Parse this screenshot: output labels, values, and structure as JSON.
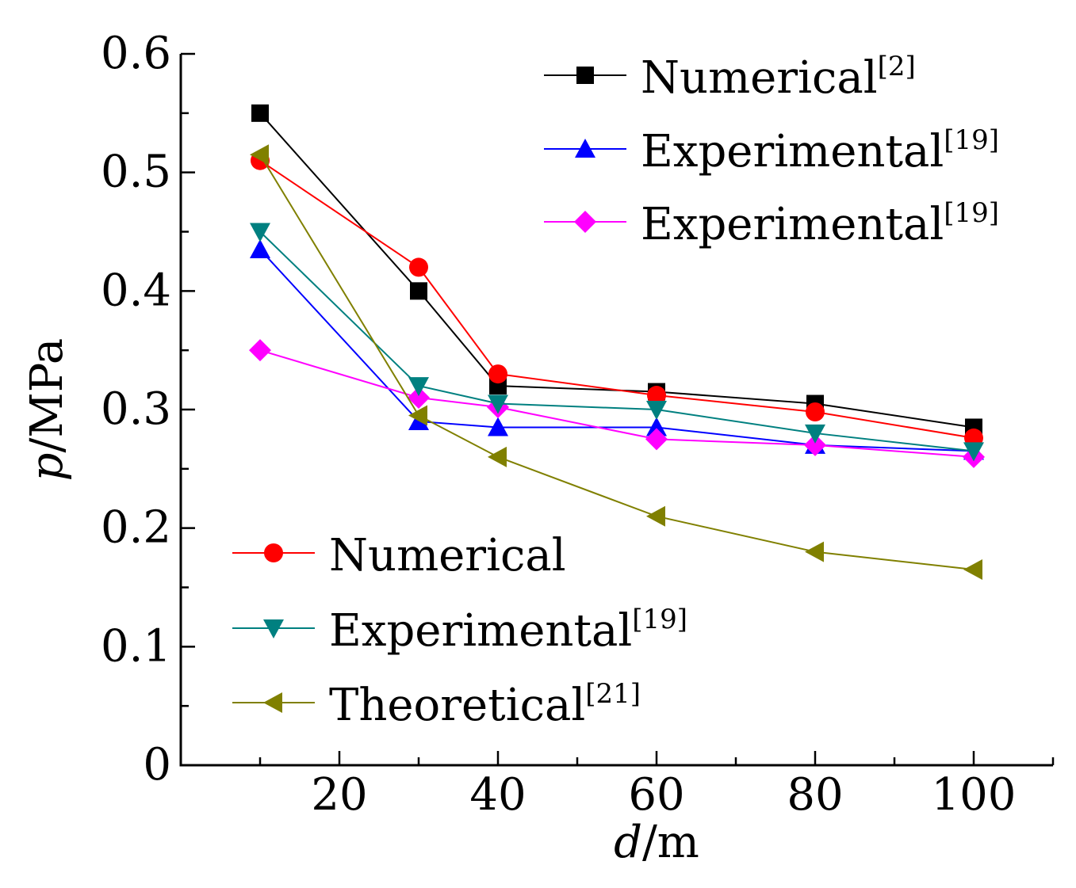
{
  "chart_data": {
    "type": "line",
    "title": "",
    "xlabel": "d",
    "xlabel_unit": "/m",
    "ylabel": "p",
    "ylabel_unit": "/MPa",
    "xlim": [
      0,
      110
    ],
    "ylim": [
      0,
      0.6
    ],
    "xticks": [
      20,
      40,
      60,
      80,
      100
    ],
    "yticks": [
      0,
      0.1,
      0.2,
      0.3,
      0.4,
      0.5,
      0.6
    ],
    "xtick_labels": [
      "20",
      "40",
      "60",
      "80",
      "100"
    ],
    "ytick_labels": [
      "0",
      "0.1",
      "0.2",
      "0.3",
      "0.4",
      "0.5",
      "0.6"
    ],
    "grid": false,
    "legend_placement": [
      "top-right",
      "bottom-left"
    ],
    "x": [
      10,
      30,
      40,
      60,
      80,
      100
    ],
    "series": [
      {
        "name": "Numerical",
        "sup": "[2]",
        "marker": "square",
        "color": "#000000",
        "values": [
          0.55,
          0.4,
          0.32,
          0.315,
          0.305,
          0.285
        ]
      },
      {
        "name": "Experimental",
        "sup": "[19]",
        "marker": "triangle-up",
        "color": "#0000FF",
        "values": [
          0.435,
          0.29,
          0.285,
          0.285,
          0.27,
          0.265
        ]
      },
      {
        "name": "Experimental",
        "sup": "[19]",
        "marker": "diamond",
        "color": "#FF00FF",
        "values": [
          0.35,
          0.31,
          0.302,
          0.275,
          0.27,
          0.26
        ]
      },
      {
        "name": "Numerical",
        "sup": "",
        "marker": "circle",
        "color": "#FF0000",
        "values": [
          0.51,
          0.42,
          0.33,
          0.312,
          0.298,
          0.276
        ]
      },
      {
        "name": "Experimental",
        "sup": "[19]",
        "marker": "triangle-down",
        "color": "#008080",
        "values": [
          0.45,
          0.32,
          0.305,
          0.3,
          0.28,
          0.265
        ]
      },
      {
        "name": "Theoretical",
        "sup": "[21]",
        "marker": "triangle-left",
        "color": "#808000",
        "values": [
          0.515,
          0.295,
          0.26,
          0.21,
          0.18,
          0.165
        ]
      }
    ]
  }
}
